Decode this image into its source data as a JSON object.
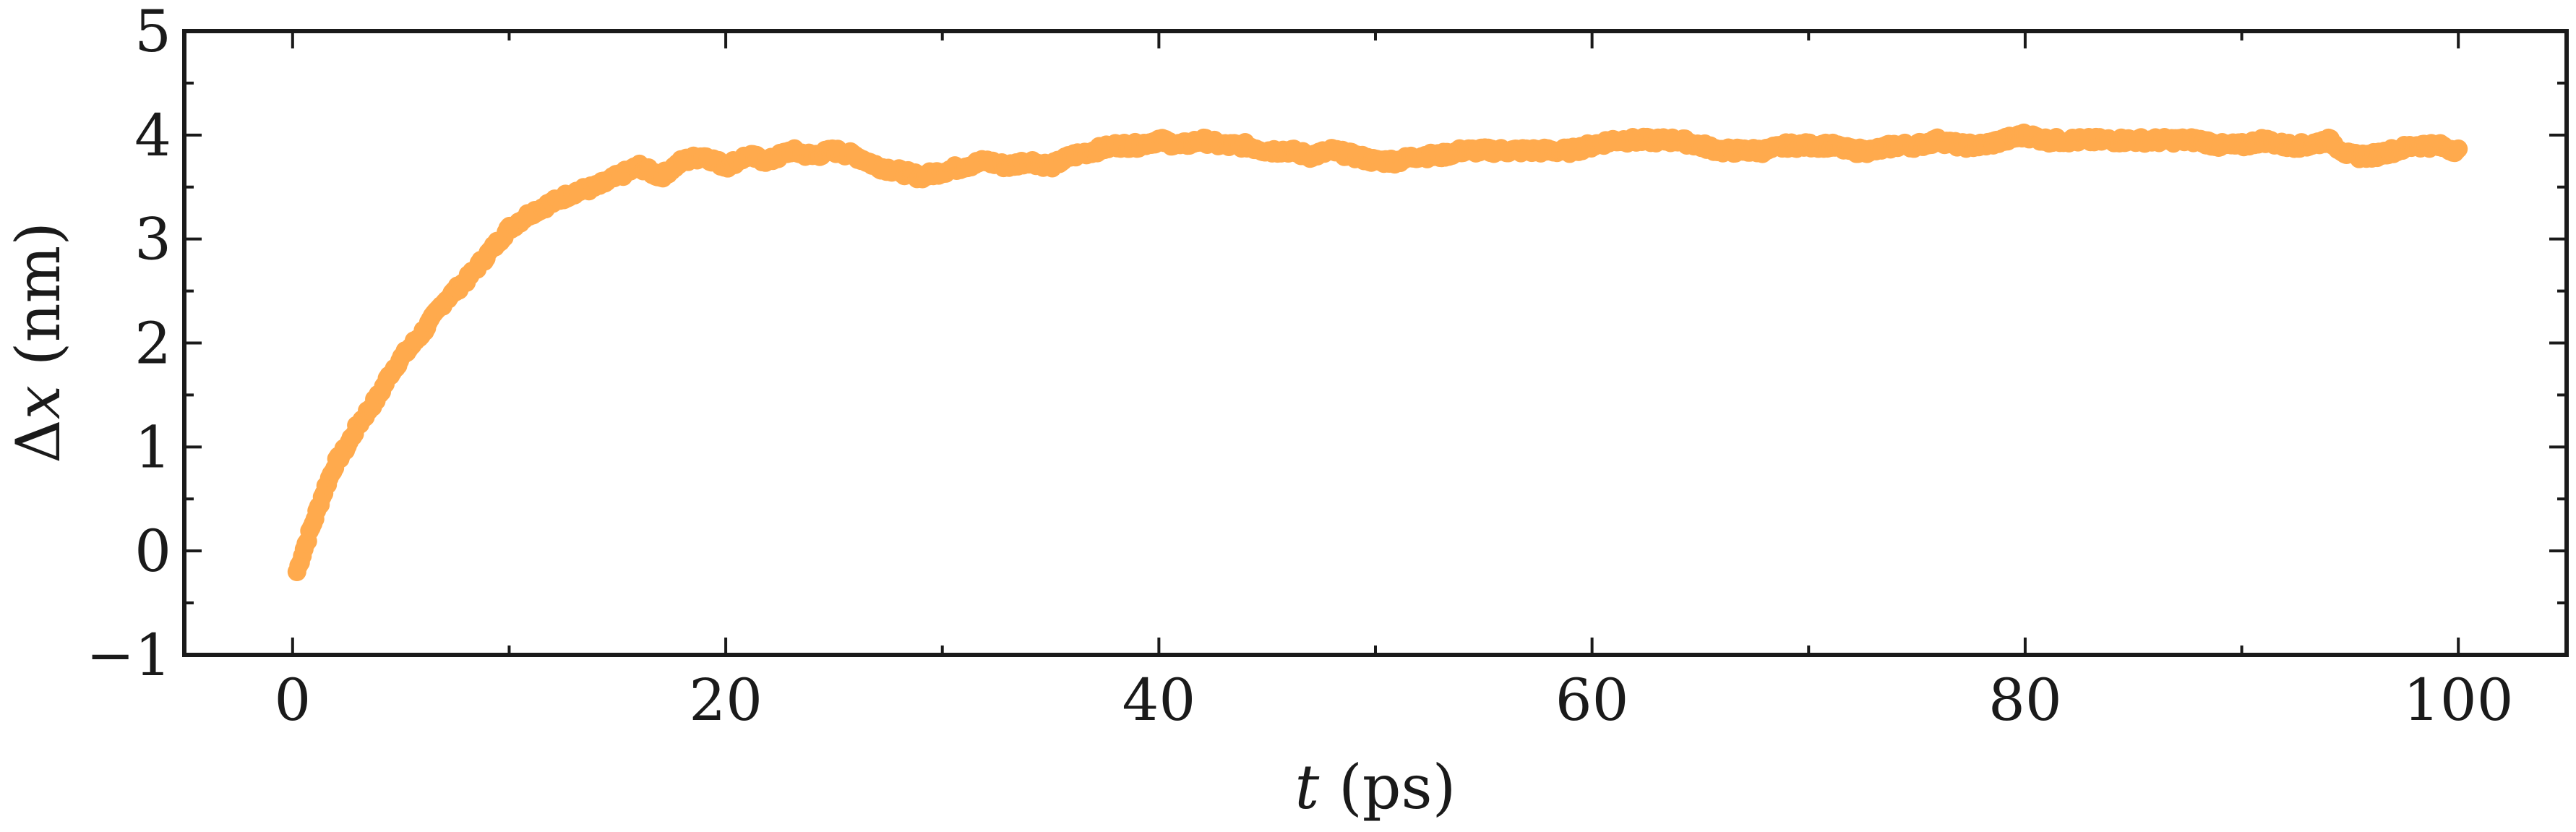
{
  "chart_data": {
    "type": "scatter",
    "xlabel_italic": "t",
    "xlabel_unit": "(ps)",
    "ylabel_prefix": "Δ",
    "ylabel_italic": "x",
    "ylabel_unit": "(nm)",
    "xlim": [
      -5,
      105
    ],
    "ylim": [
      -1,
      5
    ],
    "xticks": [
      0,
      20,
      40,
      60,
      80,
      100
    ],
    "xtick_labels": [
      "0",
      "20",
      "40",
      "60",
      "80",
      "100"
    ],
    "xminor_step": 10,
    "yticks": [
      -1,
      0,
      1,
      2,
      3,
      4,
      5
    ],
    "ytick_labels": [
      "−1",
      "0",
      "1",
      "2",
      "3",
      "4",
      "5"
    ],
    "yminor_step": 0.5,
    "grid": false,
    "color": "#ffaa4d",
    "series": [
      {
        "x": [
          0.2,
          0.5,
          1,
          1.5,
          2,
          2.5,
          3,
          3.5,
          4,
          4.5,
          5,
          6,
          7,
          8,
          9,
          10,
          11,
          12,
          13,
          14,
          15,
          16,
          17,
          18,
          19,
          20,
          21,
          22,
          23,
          24,
          25,
          26,
          27,
          28,
          29,
          30,
          31,
          32,
          33,
          34,
          35,
          36,
          37,
          38,
          39,
          40,
          41,
          42,
          43,
          44,
          45,
          46,
          47,
          48,
          49,
          50,
          51,
          52,
          53,
          54,
          55,
          56,
          57,
          58,
          59,
          60,
          61,
          62,
          63,
          64,
          65,
          66,
          67,
          68,
          69,
          70,
          71,
          72,
          73,
          74,
          75,
          76,
          77,
          78,
          79,
          80,
          81,
          82,
          83,
          84,
          85,
          86,
          87,
          88,
          89,
          90,
          91,
          92,
          93,
          94,
          95,
          96,
          97,
          98,
          99,
          100
        ],
        "y": [
          -0.2,
          0.0,
          0.3,
          0.6,
          0.85,
          1.0,
          1.2,
          1.35,
          1.5,
          1.7,
          1.85,
          2.1,
          2.4,
          2.6,
          2.85,
          3.1,
          3.25,
          3.35,
          3.45,
          3.5,
          3.6,
          3.7,
          3.6,
          3.75,
          3.8,
          3.7,
          3.8,
          3.75,
          3.85,
          3.8,
          3.85,
          3.8,
          3.7,
          3.65,
          3.6,
          3.65,
          3.7,
          3.75,
          3.7,
          3.75,
          3.7,
          3.8,
          3.85,
          3.9,
          3.9,
          3.95,
          3.9,
          3.95,
          3.9,
          3.9,
          3.85,
          3.85,
          3.8,
          3.85,
          3.8,
          3.75,
          3.75,
          3.8,
          3.8,
          3.85,
          3.85,
          3.85,
          3.85,
          3.85,
          3.85,
          3.9,
          3.95,
          3.95,
          3.95,
          3.95,
          3.9,
          3.85,
          3.85,
          3.85,
          3.9,
          3.9,
          3.9,
          3.85,
          3.85,
          3.9,
          3.9,
          3.95,
          3.9,
          3.9,
          3.95,
          4.0,
          3.95,
          3.95,
          3.95,
          3.95,
          3.95,
          3.95,
          3.95,
          3.95,
          3.9,
          3.9,
          3.95,
          3.9,
          3.9,
          3.95,
          3.8,
          3.8,
          3.85,
          3.9,
          3.9,
          3.85
        ]
      }
    ]
  }
}
